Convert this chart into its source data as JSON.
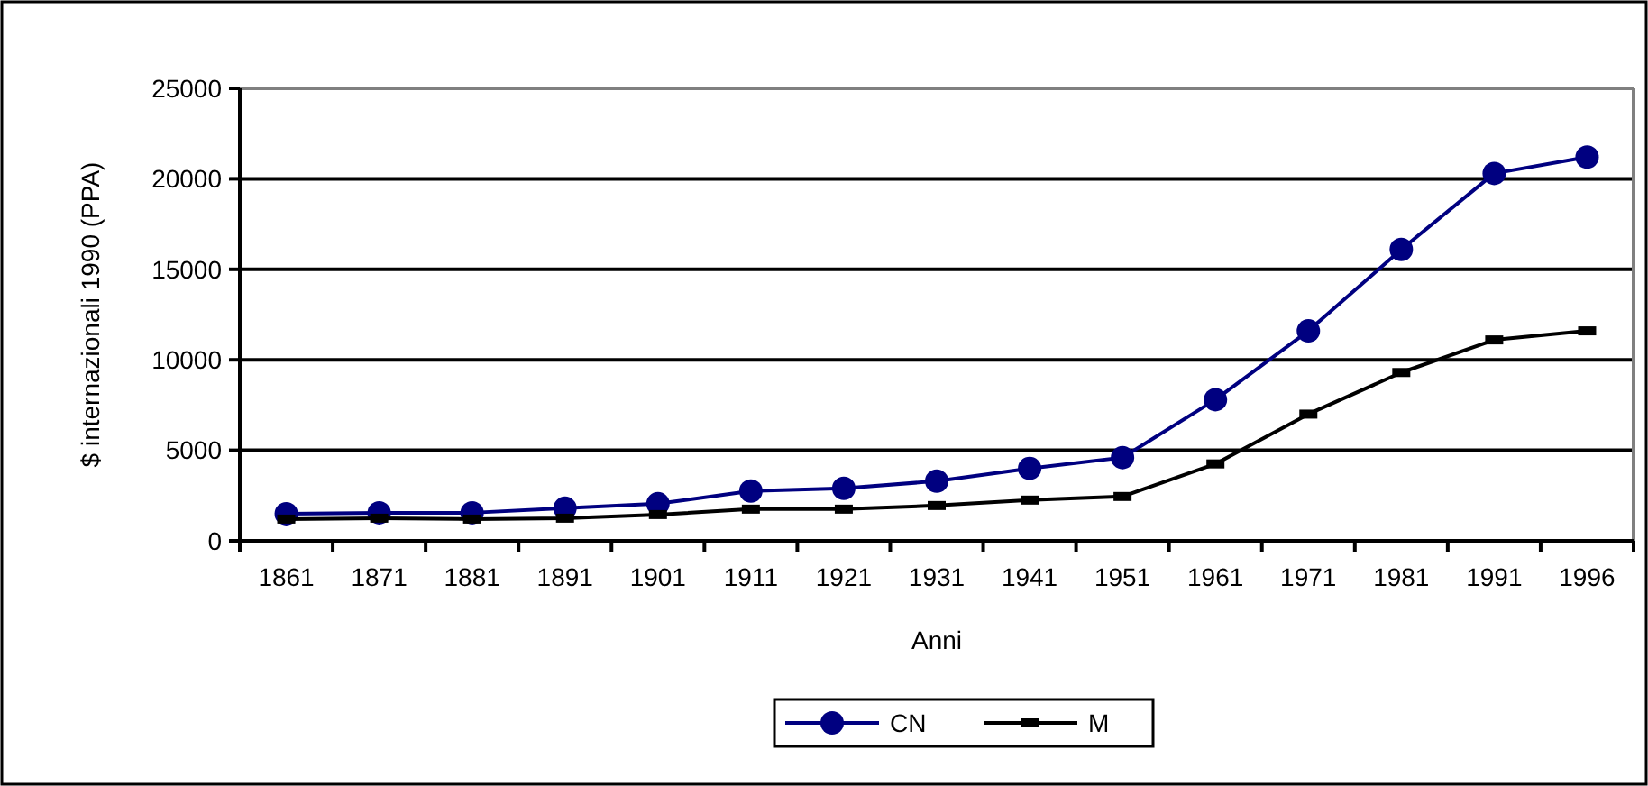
{
  "chart_data": {
    "type": "line",
    "xlabel": "Anni",
    "ylabel": "$ internazionali 1990 (PPA)",
    "categories": [
      "1861",
      "1871",
      "1881",
      "1891",
      "1901",
      "1911",
      "1921",
      "1931",
      "1941",
      "1951",
      "1961",
      "1971",
      "1981",
      "1991",
      "1996"
    ],
    "series": [
      {
        "name": "CN",
        "color": "#000080",
        "marker": "circle",
        "values": [
          1500,
          1550,
          1550,
          1800,
          2050,
          2750,
          2900,
          3300,
          4000,
          4600,
          7800,
          11600,
          16100,
          20300,
          21200
        ]
      },
      {
        "name": "M",
        "color": "#000000",
        "marker": "square",
        "values": [
          1200,
          1250,
          1200,
          1250,
          1450,
          1750,
          1750,
          1950,
          2250,
          2450,
          4250,
          7000,
          9300,
          11100,
          11600
        ]
      }
    ],
    "ylim": [
      0,
      25000
    ],
    "yticks": [
      0,
      5000,
      10000,
      15000,
      20000,
      25000
    ],
    "grid": "y",
    "legend": "bottom"
  }
}
